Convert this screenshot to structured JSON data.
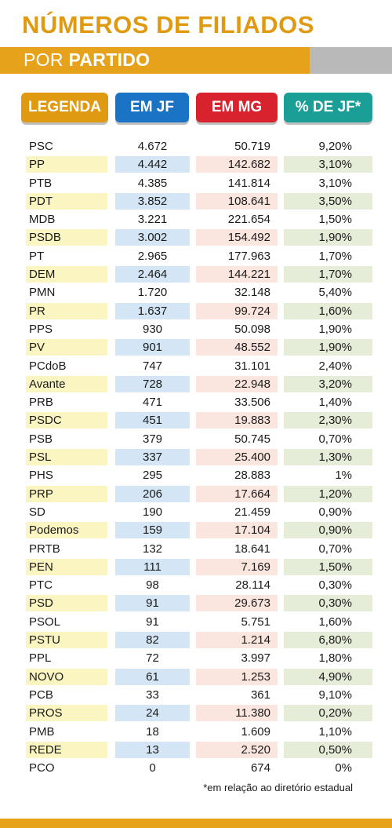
{
  "title": "NÚMEROS DE FILIADOS",
  "subtitle": {
    "prefix": "POR ",
    "bold": "PARTIDO"
  },
  "headers": {
    "legend": "LEGENDA",
    "jf": "EM JF",
    "mg": "EM MG",
    "pct": "% DE JF*"
  },
  "rows": [
    {
      "party": "PSC",
      "jf": "4.672",
      "mg": "50.719",
      "pct": "9,20%"
    },
    {
      "party": "PP",
      "jf": "4.442",
      "mg": "142.682",
      "pct": "3,10%"
    },
    {
      "party": "PTB",
      "jf": "4.385",
      "mg": "141.814",
      "pct": "3,10%"
    },
    {
      "party": "PDT",
      "jf": "3.852",
      "mg": "108.641",
      "pct": "3,50%"
    },
    {
      "party": "MDB",
      "jf": "3.221",
      "mg": "221.654",
      "pct": "1,50%"
    },
    {
      "party": "PSDB",
      "jf": "3.002",
      "mg": "154.492",
      "pct": "1,90%"
    },
    {
      "party": "PT",
      "jf": "2.965",
      "mg": "177.963",
      "pct": "1,70%"
    },
    {
      "party": "DEM",
      "jf": "2.464",
      "mg": "144.221",
      "pct": "1,70%"
    },
    {
      "party": "PMN",
      "jf": "1.720",
      "mg": "32.148",
      "pct": "5,40%"
    },
    {
      "party": "PR",
      "jf": "1.637",
      "mg": "99.724",
      "pct": "1,60%"
    },
    {
      "party": "PPS",
      "jf": "930",
      "mg": "50.098",
      "pct": "1,90%"
    },
    {
      "party": "PV",
      "jf": "901",
      "mg": "48.552",
      "pct": "1,90%"
    },
    {
      "party": "PCdoB",
      "jf": "747",
      "mg": "31.101",
      "pct": "2,40%"
    },
    {
      "party": "Avante",
      "jf": "728",
      "mg": "22.948",
      "pct": "3,20%"
    },
    {
      "party": "PRB",
      "jf": "471",
      "mg": "33.506",
      "pct": "1,40%"
    },
    {
      "party": "PSDC",
      "jf": "451",
      "mg": "19.883",
      "pct": "2,30%"
    },
    {
      "party": "PSB",
      "jf": "379",
      "mg": "50.745",
      "pct": "0,70%"
    },
    {
      "party": "PSL",
      "jf": "337",
      "mg": "25.400",
      "pct": "1,30%"
    },
    {
      "party": "PHS",
      "jf": "295",
      "mg": "28.883",
      "pct": "1%"
    },
    {
      "party": "PRP",
      "jf": "206",
      "mg": "17.664",
      "pct": "1,20%"
    },
    {
      "party": "SD",
      "jf": "190",
      "mg": "21.459",
      "pct": "0,90%"
    },
    {
      "party": "Podemos",
      "jf": "159",
      "mg": "17.104",
      "pct": "0,90%"
    },
    {
      "party": "PRTB",
      "jf": "132",
      "mg": "18.641",
      "pct": "0,70%"
    },
    {
      "party": "PEN",
      "jf": "111",
      "mg": "7.169",
      "pct": "1,50%"
    },
    {
      "party": "PTC",
      "jf": "98",
      "mg": "28.114",
      "pct": "0,30%"
    },
    {
      "party": "PSD",
      "jf": "91",
      "mg": "29.673",
      "pct": "0,30%"
    },
    {
      "party": "PSOL",
      "jf": "91",
      "mg": "5.751",
      "pct": "1,60%"
    },
    {
      "party": "PSTU",
      "jf": "82",
      "mg": "1.214",
      "pct": "6,80%"
    },
    {
      "party": "PPL",
      "jf": "72",
      "mg": "3.997",
      "pct": "1,80%"
    },
    {
      "party": "NOVO",
      "jf": "61",
      "mg": "1.253",
      "pct": "4,90%"
    },
    {
      "party": "PCB",
      "jf": "33",
      "mg": "361",
      "pct": "9,10%"
    },
    {
      "party": "PROS",
      "jf": "24",
      "mg": "11.380",
      "pct": "0,20%"
    },
    {
      "party": "PMB",
      "jf": "18",
      "mg": "1.609",
      "pct": "1,10%"
    },
    {
      "party": "REDE",
      "jf": "13",
      "mg": "2.520",
      "pct": "0,50%"
    },
    {
      "party": "PCO",
      "jf": "0",
      "mg": "674",
      "pct": "0%"
    }
  ],
  "footnote": "*em relação ao diretório estadual",
  "colors": {
    "orange": "#e09a12",
    "blue": "#1a73c4",
    "red": "#d8232f",
    "teal": "#1b9e96"
  }
}
